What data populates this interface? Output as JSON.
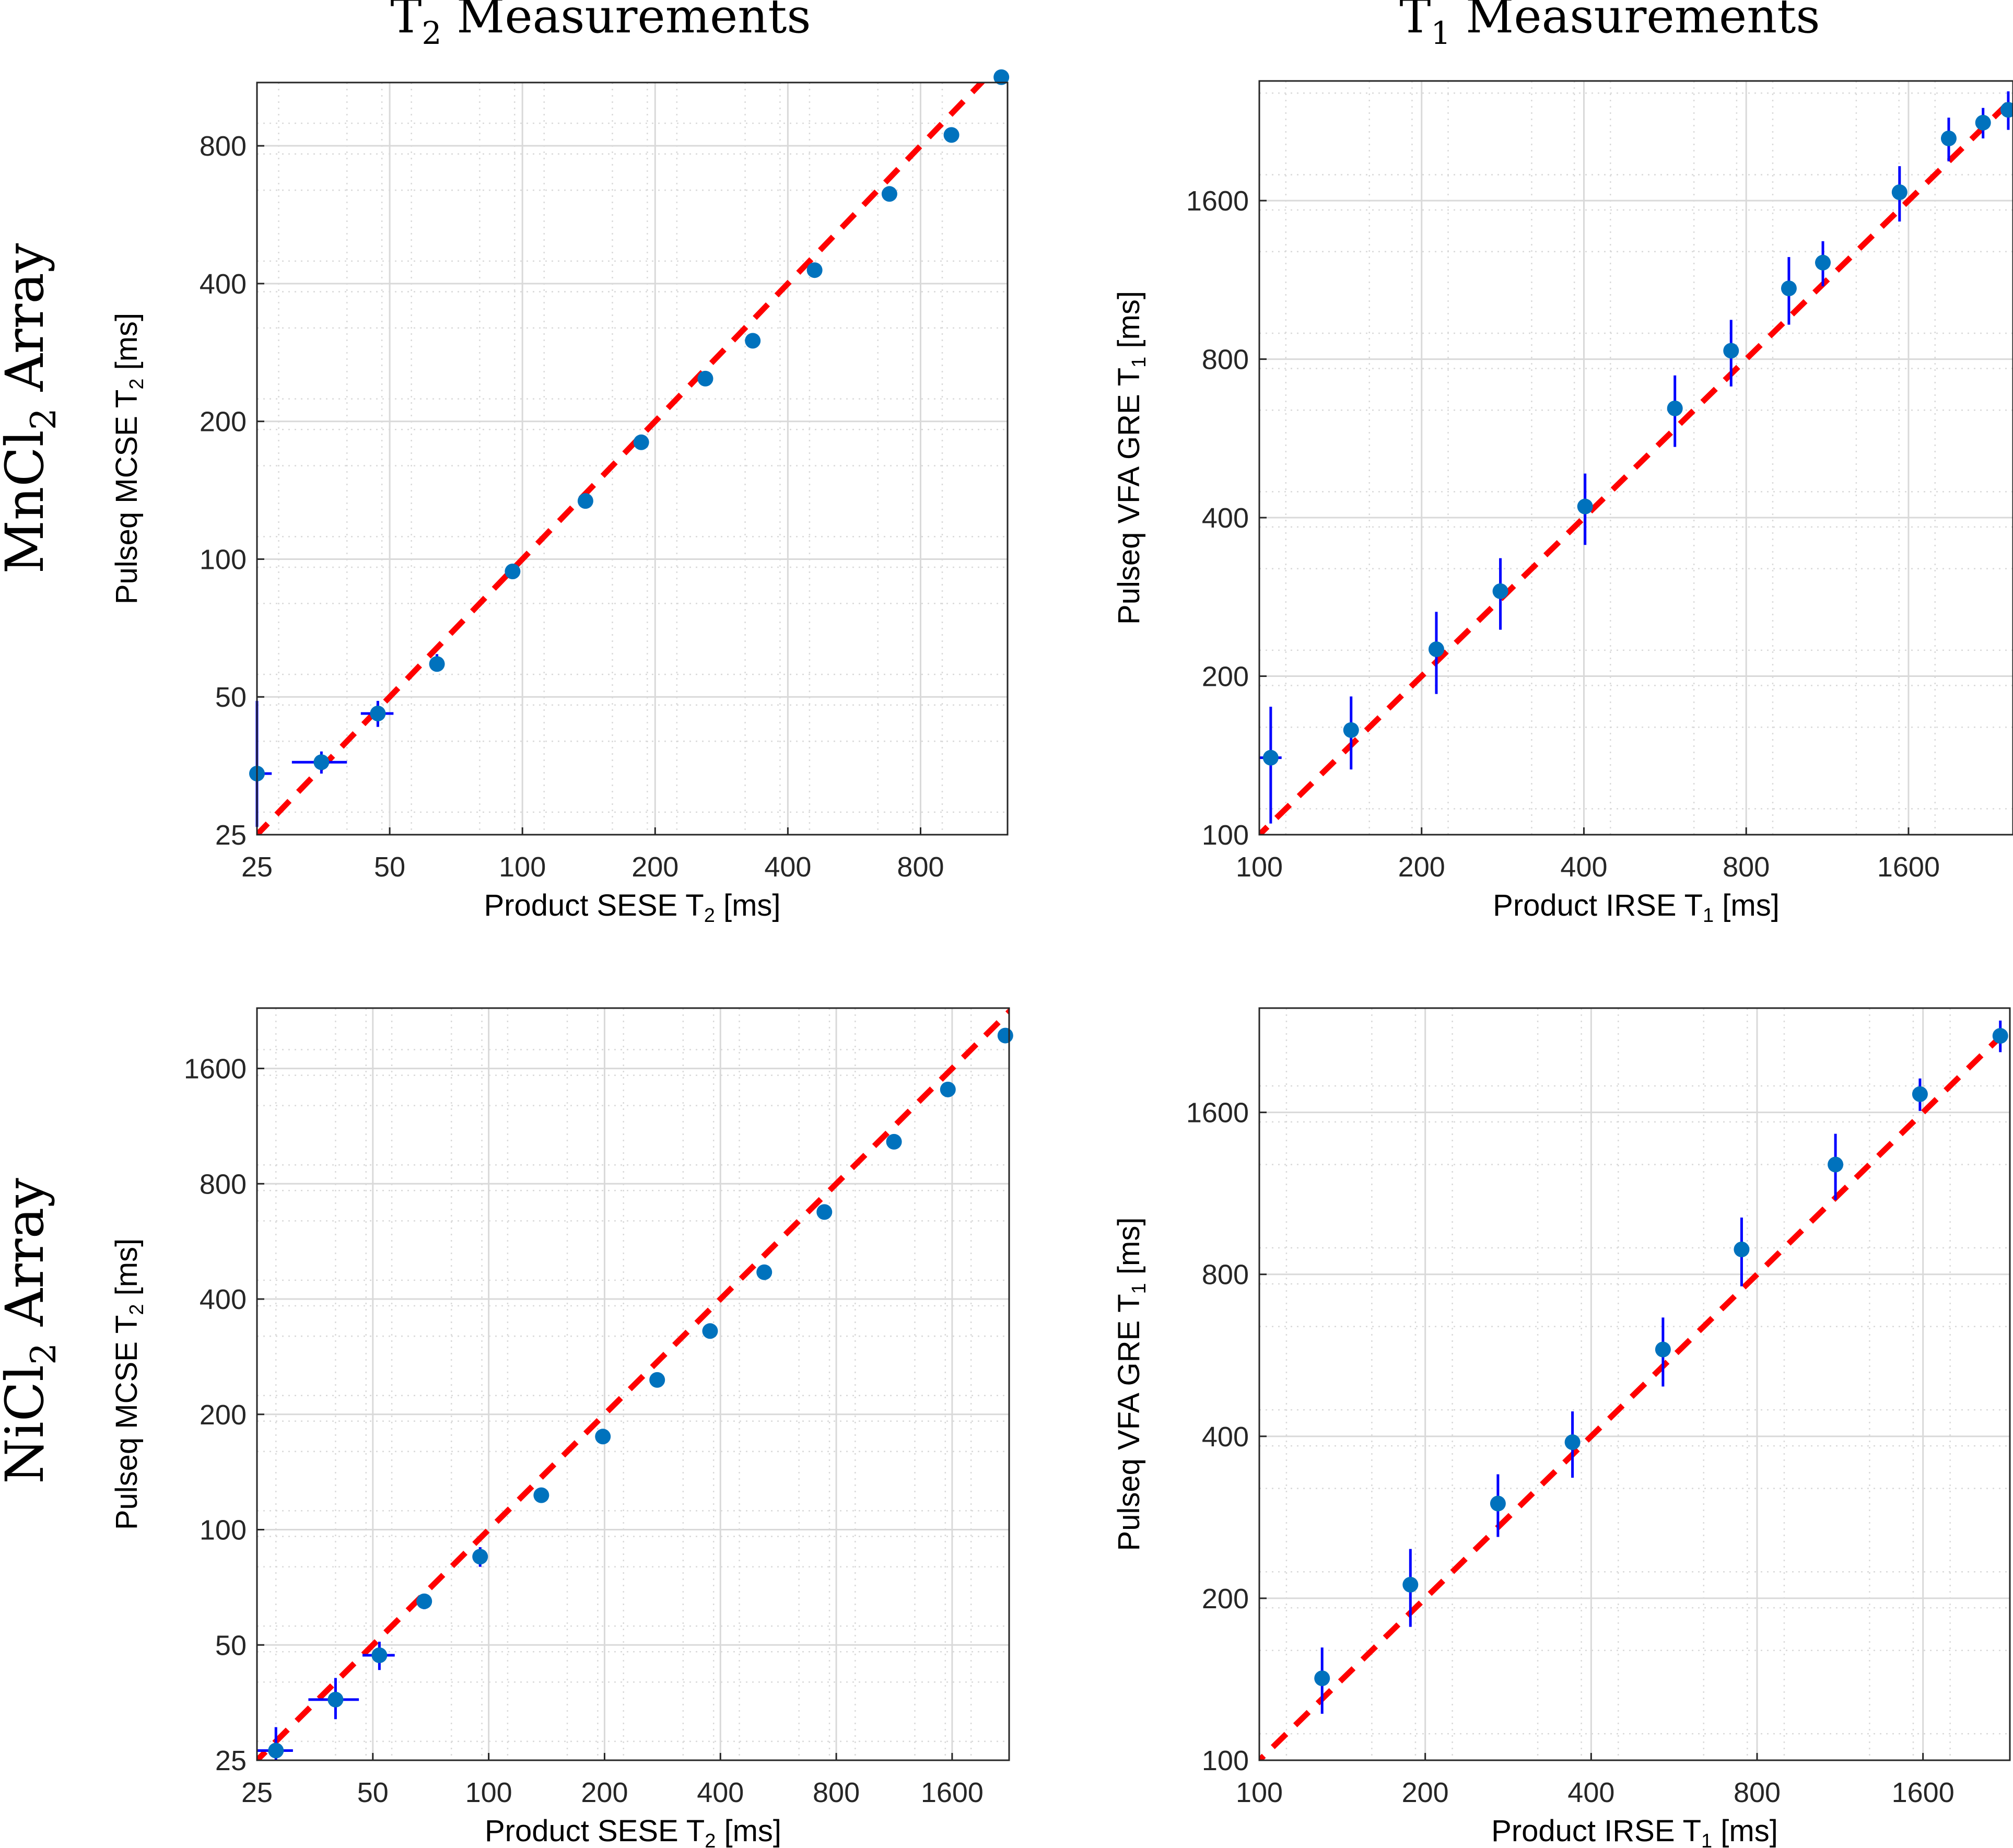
{
  "figure": {
    "col_titles": [
      {
        "main": "T",
        "sub": "2",
        "rest": " Measurements"
      },
      {
        "main": "T",
        "sub": "1",
        "rest": " Measurements"
      }
    ],
    "row_titles": [
      {
        "main": "MnCl",
        "sub": "2",
        "rest": " Array"
      },
      {
        "main": "NiCl",
        "sub": "2",
        "rest": " Array"
      }
    ],
    "colors": {
      "marker": "#0072BD",
      "errorbar": "#0000FF",
      "identity": "#FF0000",
      "grid": "#d9d9d9"
    }
  },
  "chart_data": [
    {
      "type": "scatter",
      "scale": "log2",
      "xlabel": {
        "main": "Product SESE T",
        "sub": "2",
        "rest": " [ms]"
      },
      "ylabel": {
        "main": "Pulseq MCSE T",
        "sub": "2",
        "rest": " [ms]"
      },
      "xlim": [
        25,
        1260
      ],
      "ylim": [
        25,
        1100
      ],
      "xticks": [
        25,
        50,
        100,
        200,
        400,
        800
      ],
      "yticks": [
        25,
        50,
        100,
        200,
        400,
        800
      ],
      "identity_line": true,
      "points": [
        {
          "x": 25,
          "y": 34,
          "xerr": 2,
          "yerr_lo": 8,
          "yerr_hi": 15
        },
        {
          "x": 35,
          "y": 36,
          "xerr": 5,
          "yerr_lo": 2,
          "yerr_hi": 2
        },
        {
          "x": 47,
          "y": 46,
          "xerr": 4,
          "yerr_lo": 3,
          "yerr_hi": 3
        },
        {
          "x": 64,
          "y": 59,
          "xerr": 1,
          "yerr_lo": 2,
          "yerr_hi": 3
        },
        {
          "x": 95,
          "y": 94,
          "xerr": 1,
          "yerr_lo": 2,
          "yerr_hi": 2
        },
        {
          "x": 139,
          "y": 134,
          "xerr": 1,
          "yerr_lo": 4,
          "yerr_hi": 4
        },
        {
          "x": 186,
          "y": 180,
          "xerr": 0,
          "yerr_lo": 0,
          "yerr_hi": 0
        },
        {
          "x": 260,
          "y": 248,
          "xerr": 0,
          "yerr_lo": 0,
          "yerr_hi": 0
        },
        {
          "x": 333,
          "y": 300,
          "xerr": 0,
          "yerr_lo": 0,
          "yerr_hi": 0
        },
        {
          "x": 460,
          "y": 428,
          "xerr": 0,
          "yerr_lo": 0,
          "yerr_hi": 0
        },
        {
          "x": 680,
          "y": 628,
          "xerr": 0,
          "yerr_lo": 0,
          "yerr_hi": 0
        },
        {
          "x": 940,
          "y": 845,
          "xerr": 0,
          "yerr_lo": 0,
          "yerr_hi": 0
        },
        {
          "x": 1220,
          "y": 1130,
          "xerr": 0,
          "yerr_lo": 0,
          "yerr_hi": 0
        }
      ]
    },
    {
      "type": "scatter",
      "scale": "log2",
      "xlabel": {
        "main": "Product IRSE T",
        "sub": "1",
        "rest": " [ms]"
      },
      "ylabel": {
        "main": "Pulseq VFA GRE T",
        "sub": "1",
        "rest": " [ms]"
      },
      "xlim": [
        100,
        2500
      ],
      "ylim": [
        100,
        2700
      ],
      "xticks": [
        100,
        200,
        400,
        800,
        1600
      ],
      "yticks": [
        100,
        200,
        400,
        800,
        1600
      ],
      "identity_line": true,
      "points": [
        {
          "x": 105,
          "y": 140,
          "xerr": 5,
          "yerr_lo": 35,
          "yerr_hi": 35
        },
        {
          "x": 148,
          "y": 158,
          "xerr": 0,
          "yerr_lo": 25,
          "yerr_hi": 25
        },
        {
          "x": 213,
          "y": 225,
          "xerr": 0,
          "yerr_lo": 40,
          "yerr_hi": 40
        },
        {
          "x": 280,
          "y": 290,
          "xerr": 0,
          "yerr_lo": 45,
          "yerr_hi": 45
        },
        {
          "x": 402,
          "y": 420,
          "xerr": 0,
          "yerr_lo": 65,
          "yerr_hi": 65
        },
        {
          "x": 590,
          "y": 645,
          "xerr": 0,
          "yerr_lo": 100,
          "yerr_hi": 100
        },
        {
          "x": 750,
          "y": 830,
          "xerr": 0,
          "yerr_lo": 120,
          "yerr_hi": 120
        },
        {
          "x": 960,
          "y": 1090,
          "xerr": 0,
          "yerr_lo": 160,
          "yerr_hi": 160
        },
        {
          "x": 1110,
          "y": 1220,
          "xerr": 0,
          "yerr_lo": 120,
          "yerr_hi": 120
        },
        {
          "x": 1540,
          "y": 1660,
          "xerr": 0,
          "yerr_lo": 200,
          "yerr_hi": 200
        },
        {
          "x": 1900,
          "y": 2100,
          "xerr": 0,
          "yerr_lo": 200,
          "yerr_hi": 200
        },
        {
          "x": 2200,
          "y": 2250,
          "xerr": 0,
          "yerr_lo": 150,
          "yerr_hi": 150
        },
        {
          "x": 2450,
          "y": 2380,
          "xerr": 0,
          "yerr_lo": 200,
          "yerr_hi": 200
        }
      ]
    },
    {
      "type": "scatter",
      "scale": "log2",
      "xlabel": {
        "main": "Product SESE T",
        "sub": "2",
        "rest": " [ms]"
      },
      "ylabel": {
        "main": "Pulseq MCSE T",
        "sub": "2",
        "rest": " [ms]"
      },
      "xlim": [
        25,
        2250
      ],
      "ylim": [
        25,
        2300
      ],
      "xticks": [
        25,
        50,
        100,
        200,
        400,
        800,
        1600
      ],
      "yticks": [
        25,
        50,
        100,
        200,
        400,
        800,
        1600
      ],
      "identity_line": true,
      "points": [
        {
          "x": 28,
          "y": 26.5,
          "xerr": 3,
          "yerr_lo": 2,
          "yerr_hi": 4
        },
        {
          "x": 40,
          "y": 36,
          "xerr": 6,
          "yerr_lo": 4,
          "yerr_hi": 5
        },
        {
          "x": 52,
          "y": 47,
          "xerr": 5,
          "yerr_lo": 4,
          "yerr_hi": 4
        },
        {
          "x": 68,
          "y": 65,
          "xerr": 2,
          "yerr_lo": 3,
          "yerr_hi": 3
        },
        {
          "x": 95,
          "y": 85,
          "xerr": 1,
          "yerr_lo": 5,
          "yerr_hi": 5
        },
        {
          "x": 137,
          "y": 123,
          "xerr": 0,
          "yerr_lo": 0,
          "yerr_hi": 0
        },
        {
          "x": 198,
          "y": 175,
          "xerr": 0,
          "yerr_lo": 0,
          "yerr_hi": 0
        },
        {
          "x": 274,
          "y": 246,
          "xerr": 0,
          "yerr_lo": 0,
          "yerr_hi": 0
        },
        {
          "x": 376,
          "y": 330,
          "xerr": 0,
          "yerr_lo": 0,
          "yerr_hi": 0
        },
        {
          "x": 520,
          "y": 470,
          "xerr": 0,
          "yerr_lo": 0,
          "yerr_hi": 0
        },
        {
          "x": 745,
          "y": 675,
          "xerr": 0,
          "yerr_lo": 0,
          "yerr_hi": 0
        },
        {
          "x": 1130,
          "y": 1030,
          "xerr": 0,
          "yerr_lo": 0,
          "yerr_hi": 0
        },
        {
          "x": 1560,
          "y": 1410,
          "xerr": 0,
          "yerr_lo": 0,
          "yerr_hi": 0
        },
        {
          "x": 2200,
          "y": 1950,
          "xerr": 0,
          "yerr_lo": 0,
          "yerr_hi": 0
        }
      ]
    },
    {
      "type": "scatter",
      "scale": "log2",
      "xlabel": {
        "main": "Product IRSE T",
        "sub": "1",
        "rest": " [ms]"
      },
      "ylabel": {
        "main": "Pulseq VFA GRE T",
        "sub": "1",
        "rest": " [ms]"
      },
      "xlim": [
        100,
        2300
      ],
      "ylim": [
        100,
        2500
      ],
      "xticks": [
        100,
        200,
        400,
        800,
        1600
      ],
      "yticks": [
        100,
        200,
        400,
        800,
        1600
      ],
      "identity_line": true,
      "points": [
        {
          "x": 130,
          "y": 142,
          "xerr": 0,
          "yerr_lo": 20,
          "yerr_hi": 20
        },
        {
          "x": 188,
          "y": 212,
          "xerr": 0,
          "yerr_lo": 35,
          "yerr_hi": 35
        },
        {
          "x": 271,
          "y": 300,
          "xerr": 0,
          "yerr_lo": 40,
          "yerr_hi": 40
        },
        {
          "x": 370,
          "y": 390,
          "xerr": 0,
          "yerr_lo": 55,
          "yerr_hi": 55
        },
        {
          "x": 540,
          "y": 580,
          "xerr": 0,
          "yerr_lo": 85,
          "yerr_hi": 85
        },
        {
          "x": 750,
          "y": 890,
          "xerr": 0,
          "yerr_lo": 130,
          "yerr_hi": 130
        },
        {
          "x": 1110,
          "y": 1280,
          "xerr": 0,
          "yerr_lo": 180,
          "yerr_hi": 180
        },
        {
          "x": 1580,
          "y": 1730,
          "xerr": 0,
          "yerr_lo": 120,
          "yerr_hi": 120
        },
        {
          "x": 2210,
          "y": 2220,
          "xerr": 0,
          "yerr_lo": 150,
          "yerr_hi": 150
        }
      ]
    }
  ]
}
